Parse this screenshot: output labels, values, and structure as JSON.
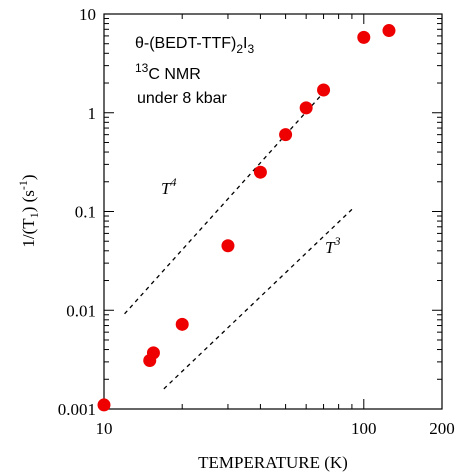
{
  "chart_data": {
    "type": "scatter",
    "x_scale": "log",
    "y_scale": "log",
    "xlim": [
      10,
      200
    ],
    "ylim": [
      0.001,
      10
    ],
    "xlabel": "TEMPERATURE (K)",
    "ylabel": "1/(T₁) (s⁻¹)",
    "x_ticks": [
      10,
      100,
      200
    ],
    "x_tick_labels": [
      "10",
      "100",
      "200"
    ],
    "y_ticks": [
      0.001,
      0.01,
      0.1,
      1,
      10
    ],
    "y_tick_labels": [
      "0.001",
      "0.01",
      "0.1",
      "1",
      "10"
    ],
    "grid": false,
    "marker_color": "#ee0000",
    "points": [
      {
        "x": 10,
        "y": 0.0011
      },
      {
        "x": 15,
        "y": 0.0031
      },
      {
        "x": 15.5,
        "y": 0.0037
      },
      {
        "x": 20,
        "y": 0.0072
      },
      {
        "x": 30,
        "y": 0.045
      },
      {
        "x": 40,
        "y": 0.25
      },
      {
        "x": 50,
        "y": 0.6
      },
      {
        "x": 60,
        "y": 1.12
      },
      {
        "x": 70,
        "y": 1.7
      },
      {
        "x": 100,
        "y": 5.8
      },
      {
        "x": 125,
        "y": 6.8
      }
    ],
    "guide_lines": [
      {
        "label": "T",
        "exponent": "4",
        "x": [
          12,
          70
        ],
        "y": [
          0.0092,
          1.6
        ]
      },
      {
        "label": "T",
        "exponent": "3",
        "x": [
          17,
          90
        ],
        "y": [
          0.0016,
          0.105
        ]
      }
    ],
    "annotation_lines": [
      "θ-(BEDT-TTF)",
      "2",
      "I",
      "3",
      "13",
      "C NMR",
      "under 8 kbar"
    ]
  }
}
